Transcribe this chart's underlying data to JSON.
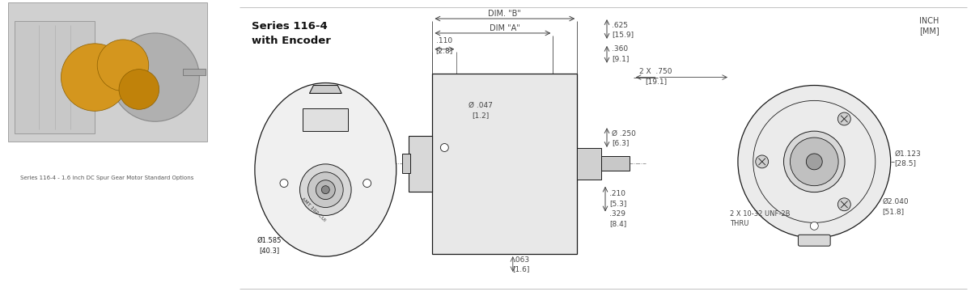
{
  "title_line1": "Series 116-4",
  "title_line2": "with Encoder",
  "unit_label1": "INCH",
  "unit_label2": "[MM]",
  "dims": {
    "dim_B_label": "DIM. \"B\"",
    "dim_A_label": "DIM \"A\"",
    "d_047": "Ø .047",
    "d_047_mm": "[1.2]",
    "d_250": "Ø .250",
    "d_250_mm": "[6.3]",
    "d_1585": "Ø1.585",
    "d_1585_mm": "[40.3]",
    "d_1123": "Ø1.123",
    "d_1123_mm": "[28.5]",
    "d_2040": "Ø2.040",
    "d_2040_mm": "[51.8]",
    "v_110": ".110",
    "v_110_mm": "[2.8]",
    "v_625": ".625",
    "v_625_mm": "[15.9]",
    "v_360": ".360",
    "v_360_mm": "[9.1]",
    "v_750": "2 X  .750",
    "v_750_mm": "[19.1]",
    "v_210": ".210",
    "v_210_mm": "[5.3]",
    "v_329": ".329",
    "v_329_mm": "[8.4]",
    "v_063": ".063",
    "v_063_mm": "[1.6]",
    "note_unf": "2 X 10-32 UNF-2B",
    "note_thru": "THRU"
  },
  "bg_color": "#ffffff",
  "line_color": "#1a1a1a",
  "text_color": "#1a1a1a",
  "dim_color": "#444444",
  "title_color": "#222222"
}
